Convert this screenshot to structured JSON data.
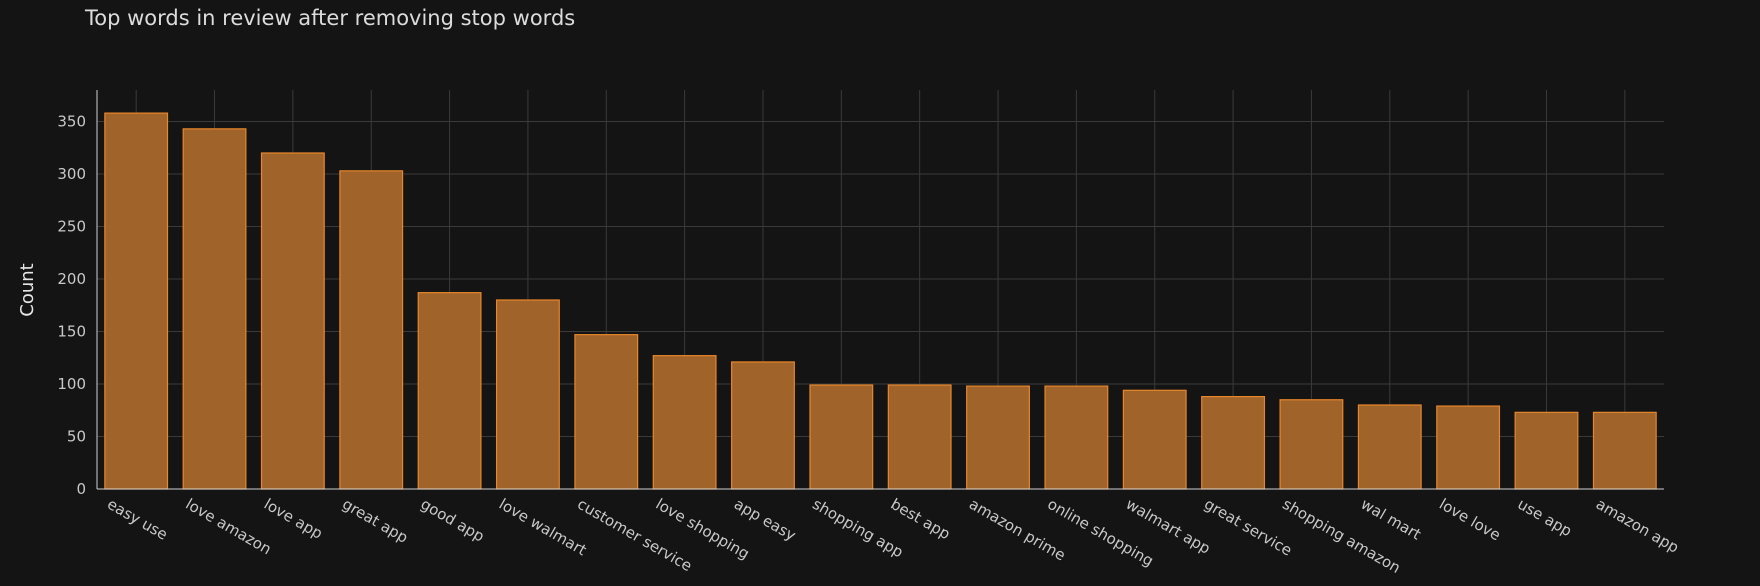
{
  "chart_data": {
    "type": "bar",
    "title": "Top words in review after removing stop words",
    "xlabel": "",
    "ylabel": "Count",
    "ylim": [
      0,
      380
    ],
    "yticks": [
      0,
      50,
      100,
      150,
      200,
      250,
      300,
      350
    ],
    "grid": true,
    "bar_color": "#a0632a",
    "bar_edge_color": "#e8862a",
    "background_color": "#141414",
    "grid_color": "#3a3a3a",
    "categories": [
      "easy use",
      "love amazon",
      "love app",
      "great app",
      "good app",
      "love walmart",
      "customer service",
      "love shopping",
      "app easy",
      "shopping app",
      "best app",
      "amazon prime",
      "online shopping",
      "walmart app",
      "great service",
      "shopping amazon",
      "wal mart",
      "love love",
      "use app",
      "amazon app"
    ],
    "values": [
      358,
      343,
      320,
      303,
      187,
      180,
      147,
      127,
      121,
      99,
      99,
      98,
      98,
      94,
      88,
      85,
      80,
      79,
      73,
      73
    ]
  }
}
